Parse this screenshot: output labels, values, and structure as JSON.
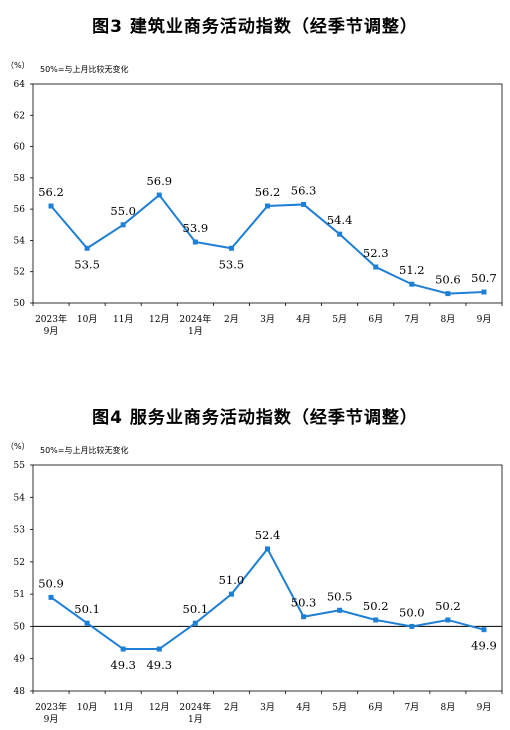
{
  "chart_data": [
    {
      "type": "line",
      "title": "图3  建筑业商务活动指数（经季节调整）",
      "unit": "（%）",
      "note": "50%=与上月比较无变化",
      "categories": [
        [
          "2023年",
          "9月"
        ],
        [
          "10月"
        ],
        [
          "11月"
        ],
        [
          "12月"
        ],
        [
          "2024年",
          "1月"
        ],
        [
          "2月"
        ],
        [
          "3月"
        ],
        [
          "4月"
        ],
        [
          "5月"
        ],
        [
          "6月"
        ],
        [
          "7月"
        ],
        [
          "8月"
        ],
        [
          "9月"
        ]
      ],
      "values": [
        56.2,
        53.5,
        55.0,
        56.9,
        53.9,
        53.5,
        56.2,
        56.3,
        54.4,
        52.3,
        51.2,
        50.6,
        50.7
      ],
      "data_labels": [
        "56.2",
        "53.5",
        "55.0",
        "56.9",
        "53.9",
        "53.5",
        "56.2",
        "56.3",
        "54.4",
        "52.3",
        "51.2",
        "50.6",
        "50.7"
      ],
      "yticks": [
        "50",
        "52",
        "54",
        "56",
        "58",
        "60",
        "62",
        "64"
      ],
      "ylim": [
        50,
        64
      ],
      "grid": false,
      "reference_line": null,
      "line_color": "#1f7fd4"
    },
    {
      "type": "line",
      "title": "图4  服务业商务活动指数（经季节调整）",
      "unit": "（%）",
      "note": "50%=与上月比较无变化",
      "categories": [
        [
          "2023年",
          "9月"
        ],
        [
          "10月"
        ],
        [
          "11月"
        ],
        [
          "12月"
        ],
        [
          "2024年",
          "1月"
        ],
        [
          "2月"
        ],
        [
          "3月"
        ],
        [
          "4月"
        ],
        [
          "5月"
        ],
        [
          "6月"
        ],
        [
          "7月"
        ],
        [
          "8月"
        ],
        [
          "9月"
        ]
      ],
      "values": [
        50.9,
        50.1,
        49.3,
        49.3,
        50.1,
        51.0,
        52.4,
        50.3,
        50.5,
        50.2,
        50.0,
        50.2,
        49.9
      ],
      "data_labels": [
        "50.9",
        "50.1",
        "49.3",
        "49.3",
        "50.1",
        "51.0",
        "52.4",
        "50.3",
        "50.5",
        "50.2",
        "50.0",
        "50.2",
        "49.9"
      ],
      "yticks": [
        "48",
        "49",
        "50",
        "51",
        "52",
        "53",
        "54",
        "55"
      ],
      "ylim": [
        48,
        55
      ],
      "grid": false,
      "reference_line": 50,
      "line_color": "#1f7fd4"
    }
  ]
}
